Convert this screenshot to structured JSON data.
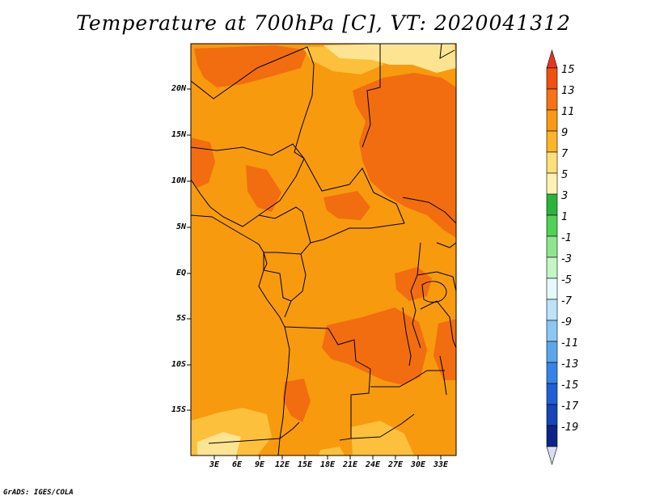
{
  "title": "Temperature at 700hPa [C], VT: 2020041312",
  "credit": "GrADS: IGES/COLA",
  "map": {
    "lat_labels": [
      "20N",
      "15N",
      "10N",
      "5N",
      "EQ",
      "5S",
      "10S",
      "15S"
    ],
    "lon_labels": [
      "3E",
      "6E",
      "9E",
      "12E",
      "15E",
      "18E",
      "21E",
      "24E",
      "27E",
      "30E",
      "33E"
    ]
  },
  "colorbar": {
    "labels": [
      "15",
      "13",
      "11",
      "9",
      "7",
      "5",
      "3",
      "1",
      "-1",
      "-3",
      "-5",
      "-7",
      "-9",
      "-11",
      "-13",
      "-15",
      "-17",
      "-19"
    ],
    "colors": [
      "#e8341e",
      "#f2500e",
      "#f67212",
      "#fa9a12",
      "#fcb429",
      "#fde07a",
      "#fff2b0",
      "#2bb43b",
      "#4ed352",
      "#8be88d",
      "#c4f5c6",
      "#e6f9fb",
      "#bde3f7",
      "#8cc7f3",
      "#5aa7ee",
      "#3884e6",
      "#2060d6",
      "#1645b8",
      "#0c2488",
      "#0b1060"
    ]
  },
  "colors": {
    "field_warm": "#f79a0e",
    "field_hot": "#f26d0f",
    "field_cool": "#fcc03c",
    "field_coolest": "#fde493"
  }
}
